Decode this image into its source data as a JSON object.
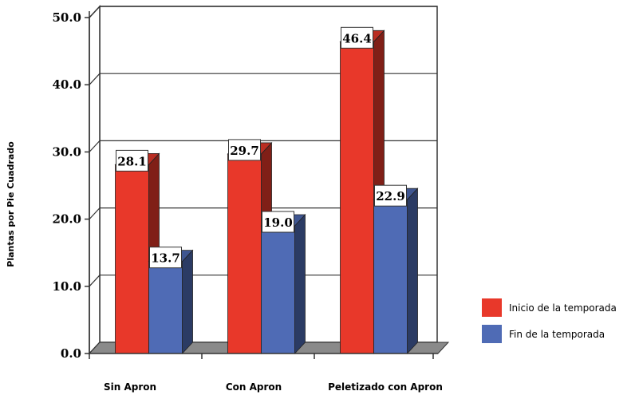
{
  "chart_data": {
    "type": "bar",
    "title": "",
    "xlabel": "",
    "ylabel": "Plantas por Pie Cuadrado",
    "categories": [
      "Sin Apron",
      "Con Apron",
      "Peletizado con Apron"
    ],
    "series": [
      {
        "name": "Inicio de la temporada",
        "color": "#e8382a",
        "values": [
          28.1,
          29.7,
          46.4
        ]
      },
      {
        "name": "Fin de la temporada",
        "color": "#4f6bb5",
        "values": [
          13.7,
          19.0,
          22.9
        ]
      }
    ],
    "ylim": [
      0,
      50
    ],
    "yticks": [
      "0.0",
      "10.0",
      "20.0",
      "30.0",
      "40.0",
      "50.0"
    ],
    "data_labels": [
      [
        "28.1",
        "29.7",
        "46.4"
      ],
      [
        "13.7",
        "19.0",
        "22.9"
      ]
    ],
    "grid": true,
    "legend_position": "bottom-right"
  }
}
